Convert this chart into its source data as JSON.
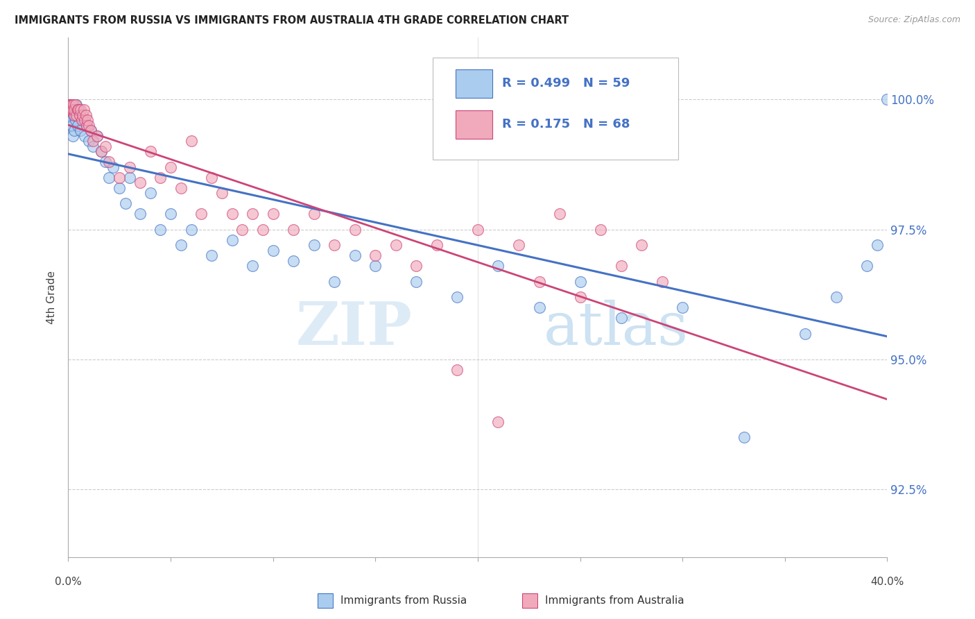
{
  "title": "IMMIGRANTS FROM RUSSIA VS IMMIGRANTS FROM AUSTRALIA 4TH GRADE CORRELATION CHART",
  "source_text": "Source: ZipAtlas.com",
  "ylabel": "4th Grade",
  "y_ticks": [
    92.5,
    95.0,
    97.5,
    100.0
  ],
  "y_tick_labels": [
    "92.5%",
    "95.0%",
    "97.5%",
    "100.0%"
  ],
  "xlim": [
    0.0,
    40.0
  ],
  "ylim": [
    91.2,
    101.2
  ],
  "legend_r_russia": "R = 0.499",
  "legend_n_russia": "N = 59",
  "legend_r_australia": "R = 0.175",
  "legend_n_australia": "N = 68",
  "legend_label_russia": "Immigrants from Russia",
  "legend_label_australia": "Immigrants from Australia",
  "color_russia": "#aaccee",
  "color_australia": "#f0aabb",
  "color_russia_line": "#4472c4",
  "color_australia_line": "#cc4477",
  "watermark_zip": "ZIP",
  "watermark_atlas": "atlas",
  "russia_x": [
    0.05,
    0.08,
    0.1,
    0.12,
    0.15,
    0.18,
    0.2,
    0.22,
    0.25,
    0.28,
    0.3,
    0.35,
    0.4,
    0.45,
    0.5,
    0.55,
    0.6,
    0.7,
    0.8,
    0.9,
    1.0,
    1.1,
    1.2,
    1.4,
    1.6,
    1.8,
    2.0,
    2.2,
    2.5,
    2.8,
    3.0,
    3.5,
    4.0,
    4.5,
    5.0,
    5.5,
    6.0,
    7.0,
    8.0,
    9.0,
    10.0,
    11.0,
    12.0,
    13.0,
    14.0,
    15.0,
    17.0,
    19.0,
    21.0,
    23.0,
    25.0,
    27.0,
    30.0,
    33.0,
    36.0,
    37.5,
    39.0,
    39.5,
    40.0
  ],
  "russia_y": [
    99.8,
    99.5,
    99.9,
    99.7,
    99.6,
    99.8,
    99.5,
    99.3,
    99.7,
    99.4,
    99.8,
    99.6,
    99.9,
    99.5,
    99.8,
    99.7,
    99.4,
    99.6,
    99.3,
    99.5,
    99.2,
    99.4,
    99.1,
    99.3,
    99.0,
    98.8,
    98.5,
    98.7,
    98.3,
    98.0,
    98.5,
    97.8,
    98.2,
    97.5,
    97.8,
    97.2,
    97.5,
    97.0,
    97.3,
    96.8,
    97.1,
    96.9,
    97.2,
    96.5,
    97.0,
    96.8,
    96.5,
    96.2,
    96.8,
    96.0,
    96.5,
    95.8,
    96.0,
    93.5,
    95.5,
    96.2,
    96.8,
    97.2,
    100.0
  ],
  "australia_x": [
    0.02,
    0.04,
    0.06,
    0.08,
    0.1,
    0.12,
    0.15,
    0.18,
    0.2,
    0.22,
    0.25,
    0.28,
    0.3,
    0.35,
    0.4,
    0.45,
    0.5,
    0.55,
    0.6,
    0.65,
    0.7,
    0.75,
    0.8,
    0.85,
    0.9,
    0.95,
    1.0,
    1.1,
    1.2,
    1.4,
    1.6,
    1.8,
    2.0,
    2.5,
    3.0,
    3.5,
    4.0,
    4.5,
    5.0,
    5.5,
    6.0,
    6.5,
    7.0,
    7.5,
    8.0,
    8.5,
    9.0,
    9.5,
    10.0,
    11.0,
    12.0,
    13.0,
    14.0,
    15.0,
    16.0,
    17.0,
    18.0,
    19.0,
    20.0,
    21.0,
    22.0,
    23.0,
    24.0,
    25.0,
    26.0,
    27.0,
    28.0,
    29.0
  ],
  "australia_y": [
    99.9,
    99.9,
    99.8,
    99.9,
    99.9,
    99.8,
    99.9,
    99.8,
    99.9,
    99.8,
    99.9,
    99.7,
    99.8,
    99.9,
    99.7,
    99.8,
    99.8,
    99.7,
    99.8,
    99.6,
    99.7,
    99.8,
    99.6,
    99.7,
    99.5,
    99.6,
    99.5,
    99.4,
    99.2,
    99.3,
    99.0,
    99.1,
    98.8,
    98.5,
    98.7,
    98.4,
    99.0,
    98.5,
    98.7,
    98.3,
    99.2,
    97.8,
    98.5,
    98.2,
    97.8,
    97.5,
    97.8,
    97.5,
    97.8,
    97.5,
    97.8,
    97.2,
    97.5,
    97.0,
    97.2,
    96.8,
    97.2,
    94.8,
    97.5,
    93.8,
    97.2,
    96.5,
    97.8,
    96.2,
    97.5,
    96.8,
    97.2,
    96.5
  ]
}
